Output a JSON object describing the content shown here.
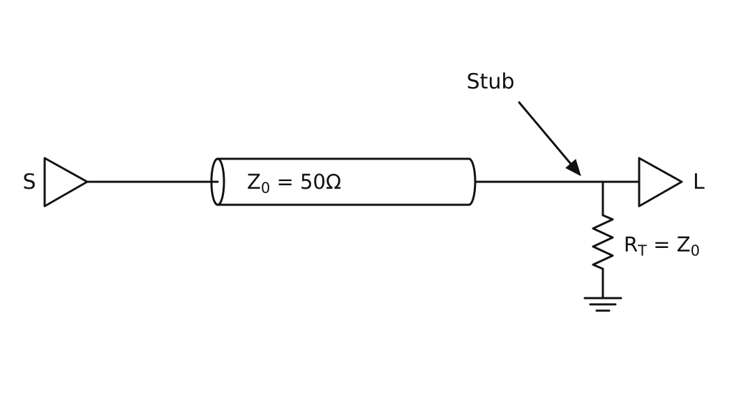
{
  "labels": {
    "source": "S",
    "load": "L",
    "stub": "Stub",
    "line_impedance": {
      "symbol": "Z",
      "subscript": "0",
      "rest": " = 50Ω"
    },
    "termination": {
      "symbol": "R",
      "subscript": "T",
      "rest": " = Z",
      "rest_subscript": "0"
    }
  },
  "colors": {
    "ink": "#111111",
    "background": "#ffffff"
  }
}
